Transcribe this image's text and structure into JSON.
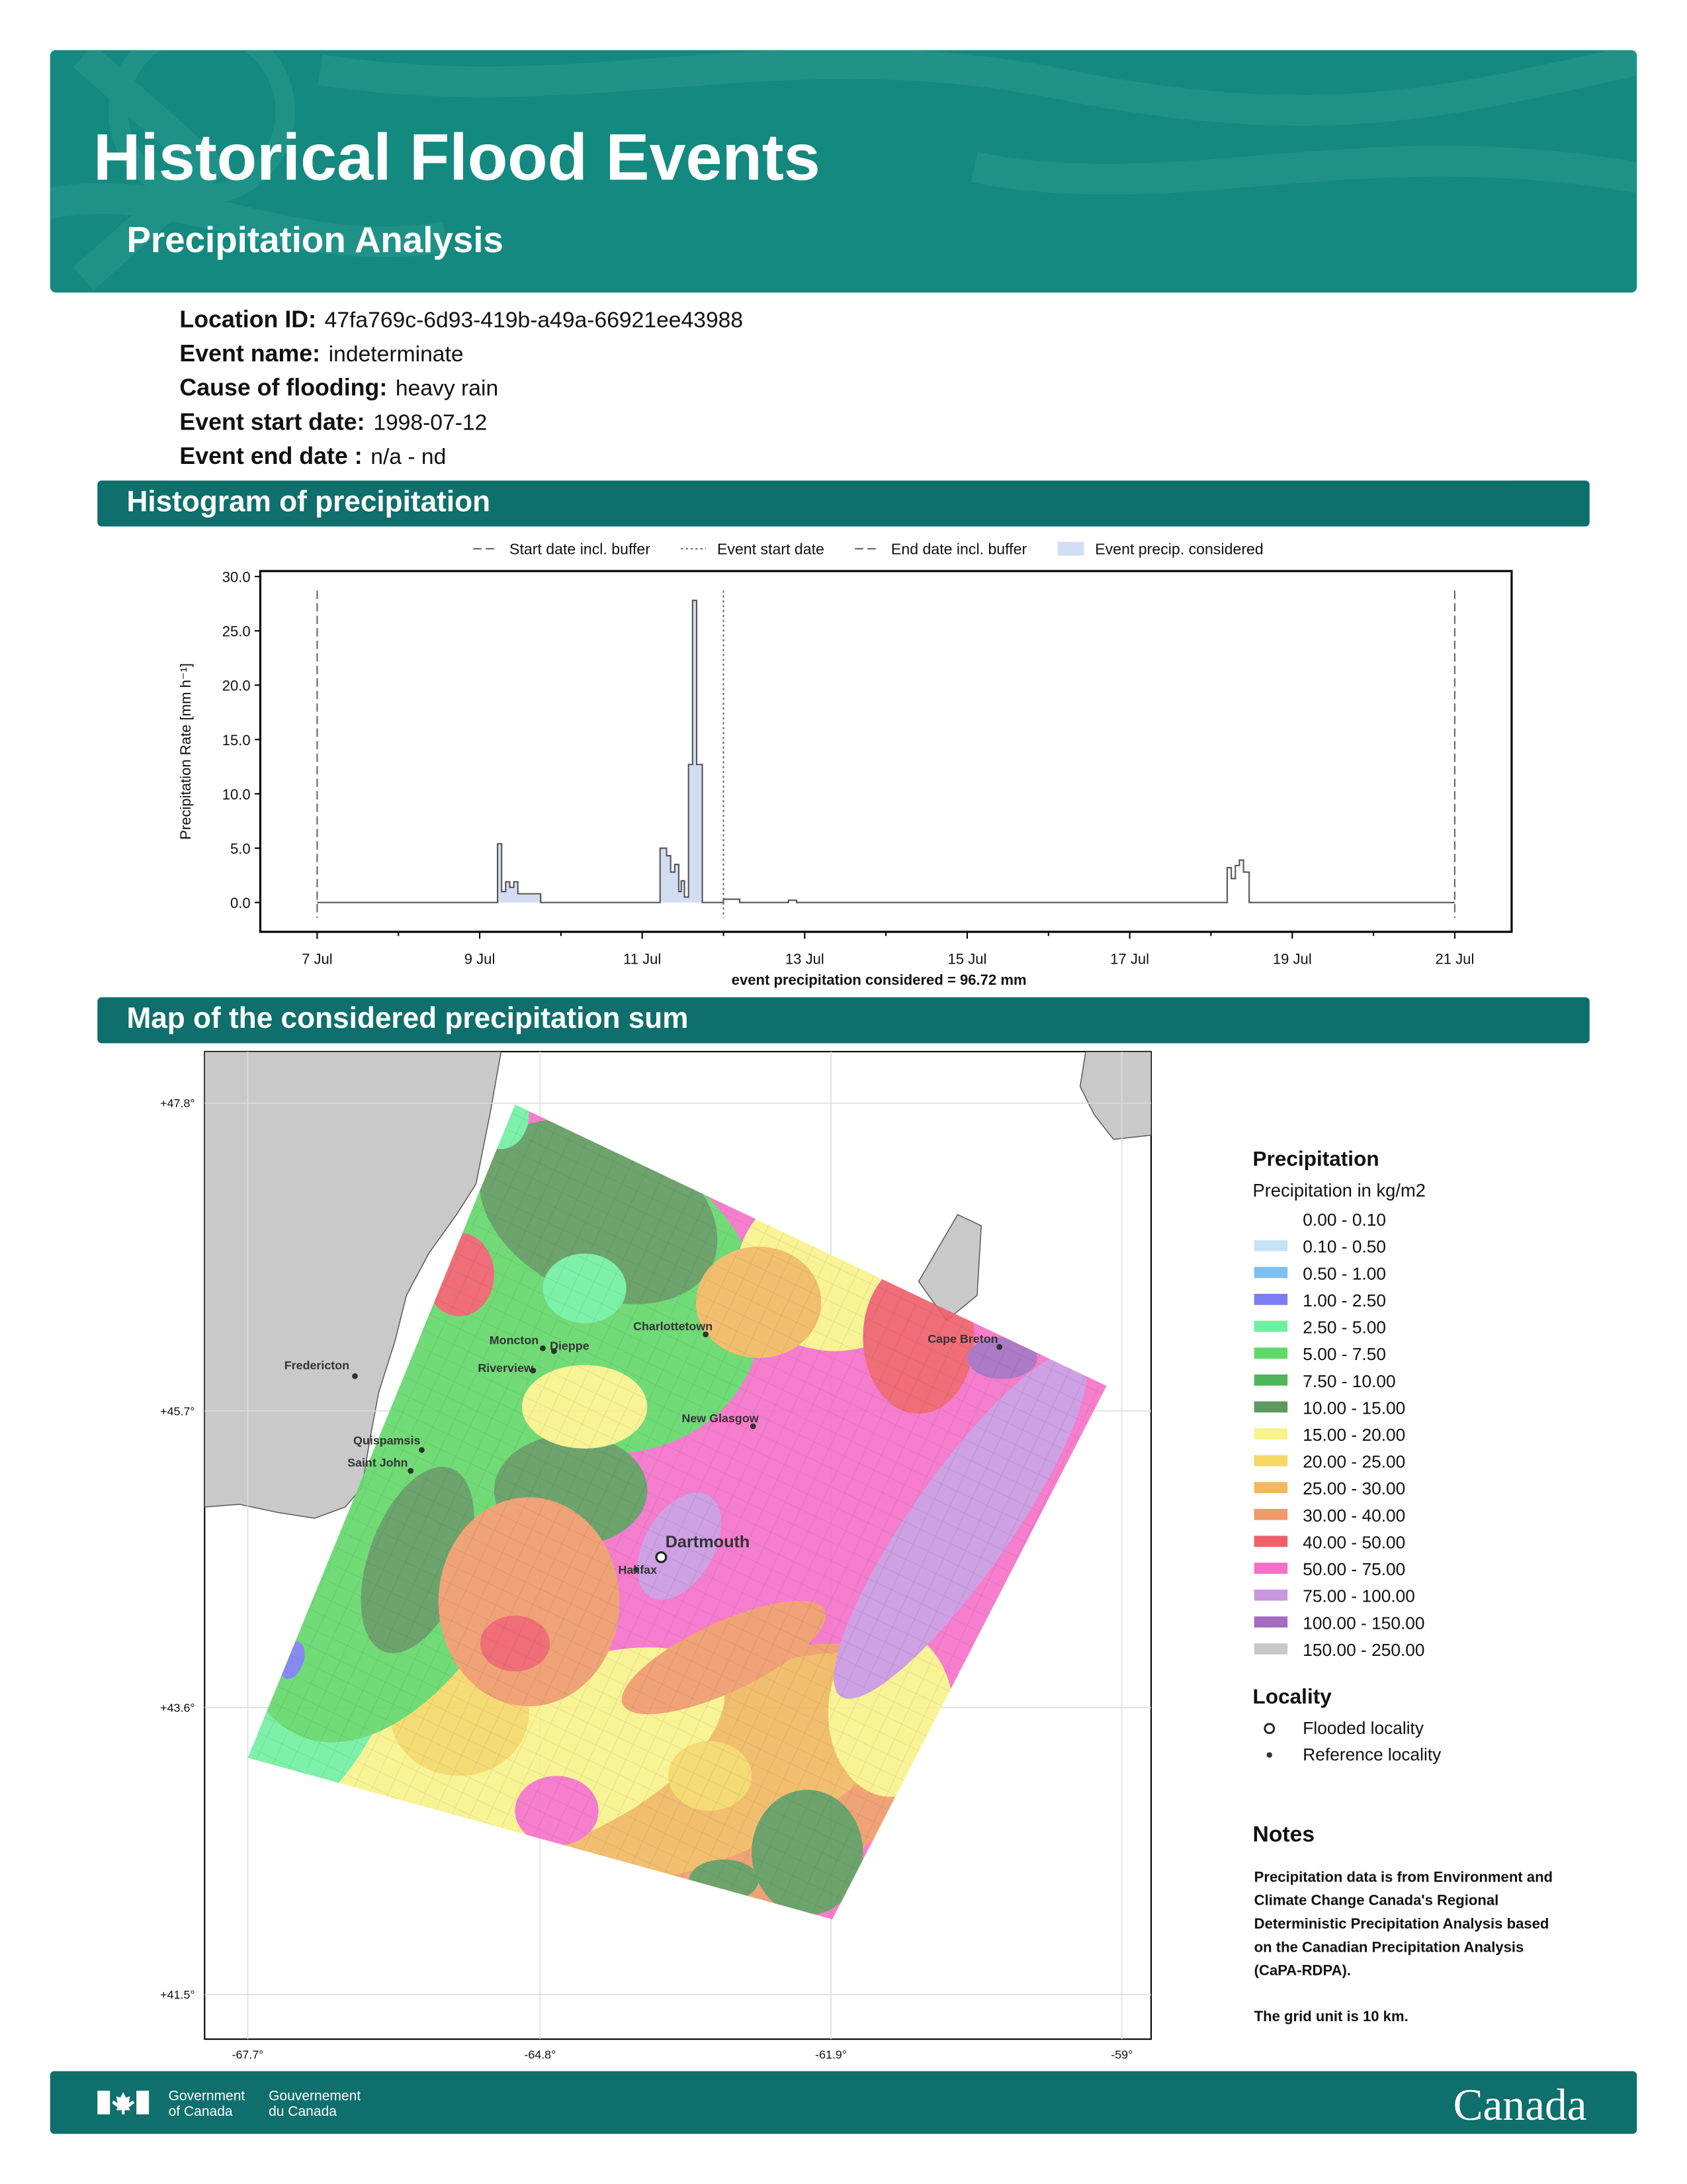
{
  "header": {
    "title": "Historical Flood Events",
    "subtitle": "Precipitation Analysis"
  },
  "event_info": [
    {
      "label": "Location ID:",
      "value": "47fa769c-6d93-419b-a49a-66921ee43988"
    },
    {
      "label": "Event name:",
      "value": "indeterminate"
    },
    {
      "label": "Cause of flooding:",
      "value": "heavy rain"
    },
    {
      "label": "Event start date:",
      "value": "1998-07-12"
    },
    {
      "label": "Event end date :",
      "value": "n/a - nd"
    }
  ],
  "chart_data": {
    "type": "step",
    "title": "Histogram of precipitation",
    "ylabel": "Precipitation Rate [mm h⁻¹]",
    "xlabel": "event precipitation considered = 96.72 mm",
    "x": [
      7,
      9.22,
      9.27,
      9.32,
      9.37,
      9.42,
      9.47,
      9.75,
      11.22,
      11.3,
      11.35,
      11.4,
      11.45,
      11.48,
      11.52,
      11.57,
      11.62,
      11.67,
      11.74,
      12.0,
      12.2,
      12.8,
      12.9,
      18.2,
      18.25,
      18.3,
      18.35,
      18.4,
      18.47,
      21
    ],
    "values": [
      0,
      5.4,
      1.0,
      1.9,
      1.4,
      1.9,
      0.8,
      0,
      5.0,
      4.3,
      2.8,
      3.5,
      1.0,
      2.0,
      0.5,
      12.7,
      27.8,
      12.7,
      0,
      0.3,
      0,
      0.2,
      0,
      3.2,
      2.2,
      3.4,
      3.9,
      2.8,
      0,
      0
    ],
    "color": "#555555",
    "fill_name": "Event precip. considered",
    "fill_color": "#d3ddf2",
    "vlines": [
      {
        "name": "Start date incl. buffer",
        "x": 7,
        "style": "dashed"
      },
      {
        "name": "Event start date",
        "x": 12,
        "style": "dotted"
      },
      {
        "name": "End date incl. buffer",
        "x": 21,
        "style": "dashed"
      }
    ],
    "xlim": [
      6.3,
      21.7
    ],
    "ylim": [
      -2.7,
      30.5
    ],
    "xticks": [
      {
        "value": 7,
        "label": "7 Jul"
      },
      {
        "value": 9,
        "label": "9 Jul"
      },
      {
        "value": 11,
        "label": "11 Jul"
      },
      {
        "value": 13,
        "label": "13 Jul"
      },
      {
        "value": 15,
        "label": "15 Jul"
      },
      {
        "value": 17,
        "label": "17 Jul"
      },
      {
        "value": 19,
        "label": "19 Jul"
      },
      {
        "value": 21,
        "label": "21 Jul"
      }
    ],
    "xticks_minor": [
      8,
      10,
      12,
      14,
      16,
      18,
      20
    ],
    "yticks": [
      {
        "value": 0,
        "label": "0.0"
      },
      {
        "value": 5,
        "label": "5.0"
      },
      {
        "value": 10,
        "label": "10.0"
      },
      {
        "value": 15,
        "label": "15.0"
      },
      {
        "value": 20,
        "label": "20.0"
      },
      {
        "value": 25,
        "label": "25.0"
      },
      {
        "value": 30,
        "label": "30.0"
      }
    ]
  },
  "map": {
    "title": "Map of the considered precipitation sum",
    "lat_labels": [
      "+47.8°",
      "+45.7°",
      "+43.6°",
      "+41.5°"
    ],
    "lon_labels": [
      "-67.7°",
      "-64.8°",
      "-61.9°",
      "-59°"
    ],
    "localities": [
      {
        "name": "Dartmouth",
        "kind": "flooded"
      },
      {
        "name": "Halifax",
        "kind": "reference"
      },
      {
        "name": "Charlottetown",
        "kind": "reference"
      },
      {
        "name": "Moncton",
        "kind": "reference"
      },
      {
        "name": "Dieppe",
        "kind": "reference"
      },
      {
        "name": "Riverview",
        "kind": "reference"
      },
      {
        "name": "Fredericton",
        "kind": "reference"
      },
      {
        "name": "New Glasgow",
        "kind": "reference"
      },
      {
        "name": "Quispamsis",
        "kind": "reference"
      },
      {
        "name": "Saint John",
        "kind": "reference"
      },
      {
        "name": "Cape Breton",
        "kind": "reference"
      }
    ],
    "legend": {
      "title": "Precipitation",
      "subtitle": "Precipitation in kg/m2",
      "classes": [
        {
          "label": "0.00 - 0.10",
          "color": "#ffffff"
        },
        {
          "label": "0.10 - 0.50",
          "color": "#c6e2f5"
        },
        {
          "label": "0.50 - 1.00",
          "color": "#7fbff0"
        },
        {
          "label": "1.00 - 2.50",
          "color": "#7b7ef0"
        },
        {
          "label": "2.50 - 5.00",
          "color": "#6ff0a0"
        },
        {
          "label": "5.00 - 7.50",
          "color": "#62d86a"
        },
        {
          "label": "7.50 - 10.00",
          "color": "#4fb55a"
        },
        {
          "label": "10.00 - 15.00",
          "color": "#5e9a5e"
        },
        {
          "label": "15.00 - 20.00",
          "color": "#f8f28a"
        },
        {
          "label": "20.00 - 25.00",
          "color": "#f5d865"
        },
        {
          "label": "25.00 - 30.00",
          "color": "#f0b860"
        },
        {
          "label": "30.00 - 40.00",
          "color": "#f09a6a"
        },
        {
          "label": "40.00 - 50.00",
          "color": "#ee5f6a"
        },
        {
          "label": "50.00 - 75.00",
          "color": "#f570c8"
        },
        {
          "label": "75.00 - 100.00",
          "color": "#c897e0"
        },
        {
          "label": "100.00 - 150.00",
          "color": "#a46cc0"
        },
        {
          "label": "150.00 - 250.00",
          "color": "#c8c8c8"
        }
      ]
    },
    "locality_legend": {
      "title": "Locality",
      "items": [
        "Flooded locality",
        "Reference locality"
      ]
    }
  },
  "notes": {
    "title": "Notes",
    "lines": [
      "Precipitation data is from Environment and",
      "Climate Change Canada's Regional",
      "Deterministic Precipitation Analysis based",
      "on the Canadian Precipitation Analysis",
      "(CaPA-RDPA)."
    ],
    "footnote": "The grid unit is 10 km."
  },
  "footer": {
    "gov_en": [
      "Government",
      "of Canada"
    ],
    "gov_fr": [
      "Gouvernement",
      "du Canada"
    ],
    "wordmark": "Canada"
  }
}
